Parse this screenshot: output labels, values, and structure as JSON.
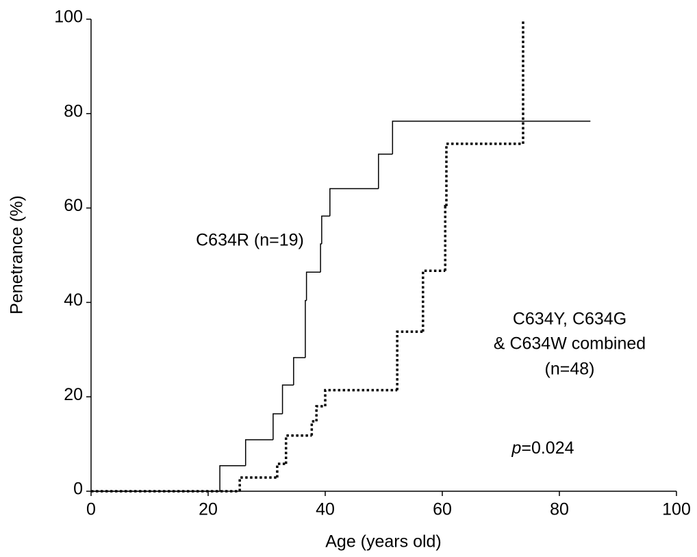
{
  "chart_data": {
    "type": "step",
    "x_label": "Age (years old)",
    "y_label": "Penetrance (%)",
    "xlim": [
      0,
      100
    ],
    "ylim": [
      0,
      100
    ],
    "xticks": [
      0,
      20,
      40,
      60,
      80,
      100
    ],
    "yticks": [
      0,
      20,
      40,
      60,
      80,
      100
    ],
    "grid": false,
    "series": [
      {
        "color": "#000000",
        "line_style": "solid",
        "x": [
          0,
          22,
          26.4,
          31.1,
          32.7,
          34.6,
          36.6,
          36.8,
          39.2,
          39.4,
          40.8,
          49.1,
          51.5,
          85.3
        ],
        "values": [
          0,
          5.4,
          10.9,
          16.4,
          22.5,
          28.3,
          40.4,
          46.4,
          52.4,
          58.3,
          64.1,
          71.4,
          78.4,
          78.4
        ]
      },
      {
        "color": "#000000",
        "line_style": "dotted",
        "x": [
          0,
          25.4,
          31.8,
          33.3,
          37.7,
          38.5,
          40,
          52.3,
          56.7,
          60.5,
          60.7,
          73.8
        ],
        "values": [
          0,
          2.9,
          5.8,
          11.8,
          14.8,
          18,
          21.4,
          33.8,
          46.7,
          60.4,
          73.6,
          100
        ]
      }
    ],
    "annotations": [
      "C634R (n=19)",
      "C634Y, C634G",
      "& C634W combined",
      "(n=48)"
    ],
    "p_value": [
      "p",
      "=0.024"
    ]
  }
}
